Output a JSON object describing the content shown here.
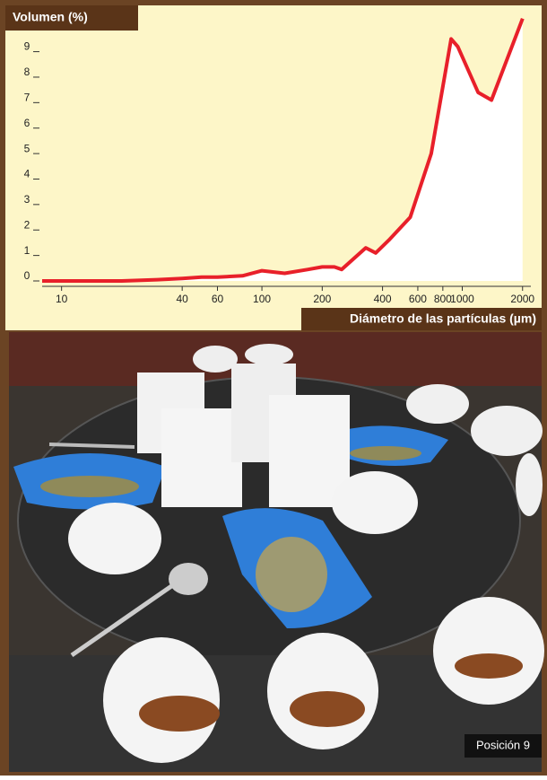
{
  "chart_data": {
    "type": "area",
    "title": "Volumen (%)",
    "x_label": "Diámetro de las partículas (µm)",
    "x_scale": "log",
    "color": "#e8202a",
    "fill": "#ffffff",
    "x": [
      8,
      20,
      30,
      40,
      50,
      60,
      80,
      100,
      130,
      170,
      200,
      230,
      250,
      330,
      370,
      430,
      550,
      700,
      880,
      950,
      1200,
      1400,
      2000
    ],
    "values": [
      0,
      0,
      0.05,
      0.1,
      0.15,
      0.15,
      0.2,
      0.4,
      0.3,
      0.45,
      0.55,
      0.55,
      0.45,
      1.3,
      1.1,
      1.6,
      2.5,
      5,
      9.5,
      9.2,
      7.4,
      7.1,
      10.3
    ],
    "xlim": [
      8,
      2200
    ],
    "ylim": [
      0,
      10.5
    ],
    "xticks": [
      10,
      40,
      60,
      100,
      200,
      400,
      600,
      800,
      1000,
      2000
    ],
    "yticks": [
      0,
      1,
      2,
      3,
      4,
      5,
      6,
      7,
      8,
      9
    ]
  },
  "photo": {
    "caption": "Posición 9"
  }
}
